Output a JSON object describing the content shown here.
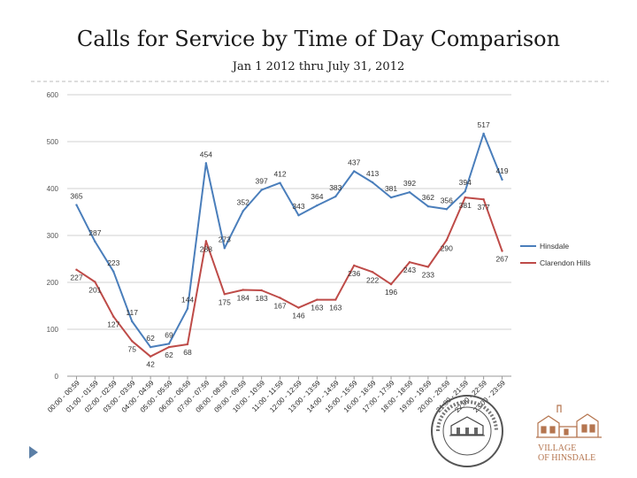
{
  "slide": {
    "title": "Calls for Service by Time of Day Comparison",
    "subtitle": "Jan 1 2012 thru July 31, 2012"
  },
  "chart_data": {
    "type": "line",
    "categories": [
      "00:00 - 00:59",
      "01:00 - 01:59",
      "02:00 - 02:59",
      "03:00 - 03:59",
      "04:00 - 04:59",
      "05:00 - 05:59",
      "06:00 - 06:59",
      "07:00 - 07:59",
      "08:00 - 08:59",
      "09:00 - 09:59",
      "10:00 - 10:59",
      "11:00 - 11:59",
      "12:00 - 12:59",
      "13:00 - 13:59",
      "14:00 - 14:59",
      "15:00 - 15:59",
      "16:00 - 16:59",
      "17:00 - 17:59",
      "18:00 - 18:59",
      "19:00 - 19:59",
      "20:00 - 20:59",
      "21:00 - 21:59",
      "22:00 - 22:59",
      "23:00 - 23:59"
    ],
    "series": [
      {
        "name": "Hinsdale",
        "color": "#4a7ebb",
        "values": [
          365,
          287,
          223,
          117,
          62,
          69,
          144,
          454,
          273,
          352,
          397,
          412,
          343,
          364,
          383,
          437,
          413,
          381,
          392,
          362,
          356,
          394,
          517,
          419
        ]
      },
      {
        "name": "Clarendon Hills",
        "color": "#be4b48",
        "values": [
          227,
          201,
          127,
          75,
          42,
          62,
          68,
          288,
          175,
          184,
          183,
          167,
          146,
          163,
          163,
          236,
          222,
          196,
          243,
          233,
          290,
          381,
          377,
          267
        ]
      }
    ],
    "yticks": [
      0,
      100,
      200,
      300,
      400,
      500,
      600
    ],
    "ylim": [
      0,
      600
    ],
    "grid": true,
    "legend_position": "right"
  },
  "logos": {
    "clarendon_seal_text": "CLARENDON HILLS 1924",
    "hinsdale_logo_text": [
      "VILLAGE",
      "OF HINSDALE"
    ]
  }
}
